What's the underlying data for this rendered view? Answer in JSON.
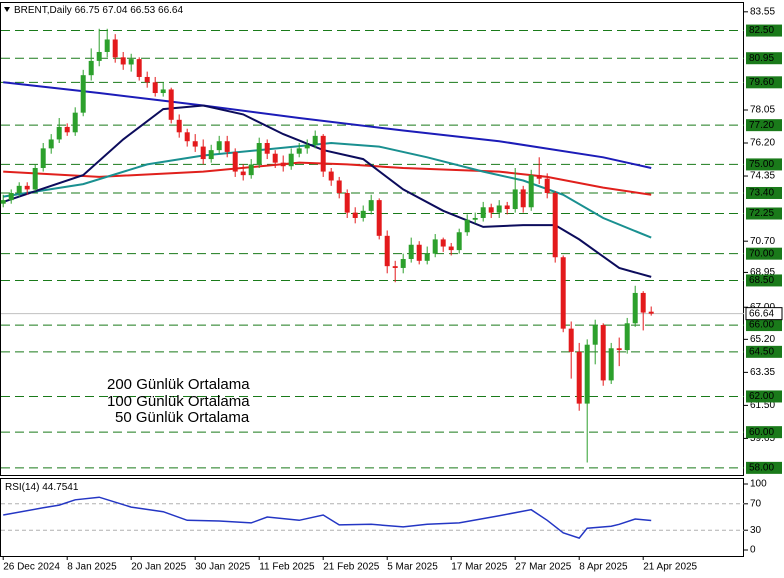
{
  "chart_data": [
    {
      "type": "candlestick",
      "title": "BRENT,Daily",
      "ohlc_header": [
        66.75,
        67.04,
        66.53,
        66.64
      ],
      "up_color": "#2ca02c",
      "down_color": "#e31a1c",
      "open": [
        72.8,
        73.0,
        73.4,
        73.8,
        73.6,
        74.8,
        75.9,
        76.4,
        77.1,
        76.8,
        77.9,
        80.0,
        80.8,
        81.3,
        82.0,
        81.0,
        80.6,
        80.9,
        79.9,
        79.6,
        79.0,
        79.2,
        77.5,
        76.8,
        76.3,
        76.0,
        75.3,
        75.8,
        76.3,
        75.7,
        74.6,
        74.4,
        75.0,
        76.2,
        75.6,
        75.1,
        74.9,
        75.6,
        75.9,
        76.1,
        76.6,
        74.6,
        74.1,
        73.4,
        72.3,
        72.0,
        72.4,
        73.0,
        71.0,
        69.3,
        69.2,
        69.7,
        70.5,
        69.6,
        70.0,
        70.8,
        70.4,
        70.2,
        71.2,
        71.9,
        72.0,
        72.6,
        72.3,
        72.7,
        72.5,
        73.6,
        72.6,
        74.4,
        74.2,
        73.4,
        69.8,
        65.8,
        64.5,
        61.6,
        64.9,
        66.0,
        62.9,
        64.7,
        64.6,
        66.1,
        67.8,
        66.75
      ],
      "high": [
        73.3,
        73.6,
        74.0,
        74.0,
        75.0,
        76.2,
        76.7,
        77.6,
        77.3,
        78.2,
        80.3,
        81.5,
        82.6,
        82.6,
        82.3,
        81.3,
        81.2,
        81.0,
        80.2,
        79.9,
        79.6,
        79.3,
        77.8,
        77.0,
        76.7,
        76.4,
        76.1,
        76.6,
        76.6,
        75.9,
        75.0,
        75.3,
        76.5,
        76.4,
        75.8,
        75.5,
        75.9,
        76.2,
        76.4,
        76.9,
        76.7,
        74.8,
        74.3,
        73.6,
        72.6,
        72.7,
        73.3,
        73.1,
        71.3,
        69.6,
        70.0,
        70.9,
        70.7,
        70.4,
        71.1,
        70.9,
        70.6,
        71.4,
        72.2,
        72.3,
        72.9,
        72.8,
        73.0,
        72.9,
        74.8,
        73.8,
        74.7,
        75.4,
        74.5,
        73.5,
        69.9,
        66.2,
        65.0,
        65.2,
        66.3,
        66.1,
        65.0,
        65.3,
        66.4,
        68.2,
        67.9,
        67.04
      ],
      "low": [
        72.6,
        72.8,
        73.2,
        73.3,
        73.5,
        74.6,
        75.6,
        76.2,
        76.6,
        76.6,
        77.7,
        79.7,
        80.5,
        81.0,
        80.7,
        80.3,
        80.2,
        79.7,
        79.3,
        78.8,
        78.8,
        77.3,
        76.5,
        76.0,
        75.7,
        75.0,
        75.1,
        75.6,
        75.4,
        74.3,
        74.1,
        74.2,
        74.8,
        75.3,
        74.8,
        74.6,
        74.7,
        75.4,
        75.6,
        75.9,
        74.3,
        73.8,
        73.1,
        72.0,
        71.7,
        71.8,
        72.2,
        70.8,
        68.9,
        68.4,
        68.9,
        69.5,
        69.4,
        69.4,
        69.8,
        70.1,
        69.9,
        70.0,
        71.0,
        71.7,
        71.8,
        72.0,
        72.0,
        72.2,
        72.3,
        72.3,
        72.4,
        73.9,
        73.1,
        69.5,
        65.6,
        63.0,
        61.2,
        58.3,
        63.8,
        62.6,
        62.7,
        63.7,
        64.4,
        65.9,
        65.7,
        66.53
      ],
      "close": [
        73.0,
        73.4,
        73.8,
        73.6,
        74.8,
        75.9,
        76.4,
        77.1,
        76.8,
        77.9,
        80.0,
        80.8,
        81.3,
        82.0,
        81.0,
        80.6,
        80.9,
        79.9,
        79.6,
        79.0,
        79.2,
        77.5,
        76.8,
        76.3,
        76.0,
        75.3,
        75.8,
        76.3,
        75.7,
        74.6,
        74.4,
        75.0,
        76.2,
        75.6,
        75.1,
        74.9,
        75.6,
        75.9,
        76.1,
        76.6,
        74.6,
        74.1,
        73.4,
        72.3,
        72.0,
        72.4,
        73.0,
        71.0,
        69.3,
        69.2,
        69.7,
        70.5,
        69.6,
        70.0,
        70.8,
        70.4,
        70.2,
        71.2,
        71.9,
        72.0,
        72.6,
        72.3,
        72.7,
        72.5,
        73.6,
        72.6,
        74.4,
        74.2,
        73.4,
        69.8,
        65.8,
        64.5,
        61.6,
        64.9,
        66.0,
        62.9,
        64.7,
        64.6,
        66.1,
        67.8,
        66.7,
        66.64
      ],
      "series": [
        {
          "name": "200 Günlük Ortalama",
          "color": "#1c1cb8",
          "x": [
            0,
            12,
            25,
            37,
            50,
            62,
            75,
            81
          ],
          "values": [
            79.6,
            79.0,
            78.3,
            77.6,
            76.9,
            76.3,
            75.4,
            74.8
          ]
        },
        {
          "name": "100 Günlük Ortalama",
          "color": "#e0201c",
          "x": [
            0,
            12,
            25,
            37,
            43,
            50,
            62,
            68,
            75,
            81
          ],
          "values": [
            74.6,
            74.3,
            74.6,
            75.1,
            75.0,
            74.8,
            74.6,
            74.3,
            73.7,
            73.3
          ]
        },
        {
          "name": "50 Günlük Ortalama",
          "color": "#1a9090",
          "x": [
            0,
            10,
            18,
            25,
            32,
            41,
            47,
            53,
            60,
            65,
            70,
            75,
            81
          ],
          "values": [
            73.2,
            73.9,
            75.0,
            75.5,
            75.8,
            76.2,
            76.0,
            75.4,
            74.6,
            74.1,
            73.3,
            72.0,
            70.9
          ]
        },
        {
          "color": "#0c0c5c",
          "x": [
            0,
            10,
            15,
            20,
            25,
            30,
            35,
            40,
            45,
            50,
            55,
            60,
            65,
            69,
            72,
            77,
            81
          ],
          "values": [
            72.9,
            74.4,
            76.4,
            78.1,
            78.3,
            77.8,
            76.7,
            75.8,
            75.3,
            73.6,
            72.4,
            71.5,
            71.6,
            71.6,
            70.8,
            69.2,
            68.7
          ]
        }
      ],
      "xlim": [
        -0.4,
        92.6
      ],
      "ylim": [
        57.6,
        84.1
      ],
      "yticks": [
        83.55,
        78.05,
        {
          "value": 76.2,
          "label": "76.20"
        },
        74.35,
        {
          "value": 70.7,
          "label": "70.70"
        },
        68.95,
        {
          "value": 67,
          "label": "67.00"
        },
        {
          "value": 65.2,
          "label": "65.20"
        },
        63.35,
        {
          "value": 61.5,
          "label": "61.50"
        },
        59.65
      ],
      "levels": [
        {
          "value": 82.5,
          "label": "82.50"
        },
        80.95,
        {
          "value": 79.6,
          "label": "79.60"
        },
        {
          "value": 77.2,
          "label": "77.20"
        },
        {
          "value": 75,
          "label": "75.00"
        },
        {
          "value": 73.4,
          "label": "73.40"
        },
        72.25,
        {
          "value": 70,
          "label": "70.00"
        },
        {
          "value": 68.5,
          "label": "68.50"
        },
        {
          "value": 66,
          "label": "66.00"
        },
        {
          "value": 64.5,
          "label": "64.50"
        },
        {
          "value": 62,
          "label": "62.00"
        },
        {
          "value": 60,
          "label": "60.00"
        },
        {
          "value": 58,
          "label": "58.00"
        }
      ],
      "level_color": "#1a7a1a",
      "last_price": 66.64,
      "grid": false
    },
    {
      "type": "line",
      "title": "RSI(14)",
      "value": 44.7541,
      "series": [
        {
          "color": "#2436c4",
          "x": [
            0,
            5,
            7,
            9,
            12,
            16,
            20,
            23,
            27,
            31,
            33,
            37,
            40,
            42,
            46,
            50,
            53,
            57,
            62,
            66,
            68,
            70,
            72,
            73,
            76,
            77,
            79,
            81
          ],
          "values": [
            53,
            64,
            68,
            76,
            80,
            65,
            58,
            45,
            44,
            41,
            50,
            45,
            53,
            38,
            39,
            35,
            39,
            41,
            52,
            61,
            45,
            26,
            18,
            33,
            36,
            39,
            47,
            44.75
          ]
        }
      ],
      "xlim": [
        -0.4,
        92.6
      ],
      "ylim": [
        -9.1,
        109.1
      ],
      "yticks": [
        100,
        70,
        30,
        0
      ],
      "levels": [
        70,
        30
      ],
      "level_color": "#b0b0b0",
      "xticks": [
        {
          "value": 0,
          "label": "26 Dec 2024"
        },
        {
          "value": 8,
          "label": "8 Jan 2025"
        },
        {
          "value": 16,
          "label": "20 Jan 2025"
        },
        {
          "value": 24,
          "label": "30 Jan 2025"
        },
        {
          "value": 32,
          "label": "11 Feb 2025"
        },
        {
          "value": 40,
          "label": "21 Feb 2025"
        },
        {
          "value": 48,
          "label": "5 Mar 2025"
        },
        {
          "value": 56,
          "label": "17 Mar 2025"
        },
        {
          "value": 64,
          "label": "27 Mar 2025"
        },
        {
          "value": 72,
          "label": "8 Apr 2025"
        },
        {
          "value": 80,
          "label": "21 Apr 2025"
        }
      ]
    }
  ]
}
